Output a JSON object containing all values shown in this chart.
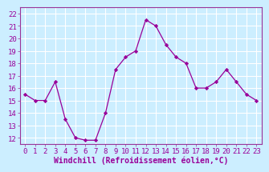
{
  "x": [
    0,
    1,
    2,
    3,
    4,
    5,
    6,
    7,
    8,
    9,
    10,
    11,
    12,
    13,
    14,
    15,
    16,
    17,
    18,
    19,
    20,
    21,
    22,
    23
  ],
  "y": [
    15.5,
    15.0,
    15.0,
    16.5,
    13.5,
    12.0,
    11.8,
    11.8,
    14.0,
    17.5,
    18.5,
    19.0,
    21.5,
    21.0,
    19.5,
    18.5,
    18.0,
    16.0,
    16.0,
    16.5,
    17.5,
    16.5,
    15.5,
    15.0
  ],
  "xlabel": "Windchill (Refroidissement éolien,°C)",
  "ylim": [
    11.5,
    22.5
  ],
  "yticks": [
    12,
    13,
    14,
    15,
    16,
    17,
    18,
    19,
    20,
    21,
    22
  ],
  "xticks": [
    0,
    1,
    2,
    3,
    4,
    5,
    6,
    7,
    8,
    9,
    10,
    11,
    12,
    13,
    14,
    15,
    16,
    17,
    18,
    19,
    20,
    21,
    22,
    23
  ],
  "line_color": "#990099",
  "marker_color": "#990099",
  "bg_color": "#cceeff",
  "grid_color": "#ffffff",
  "tick_label_fontsize": 6.5,
  "xlabel_fontsize": 7.0,
  "axis_color": "#993399"
}
